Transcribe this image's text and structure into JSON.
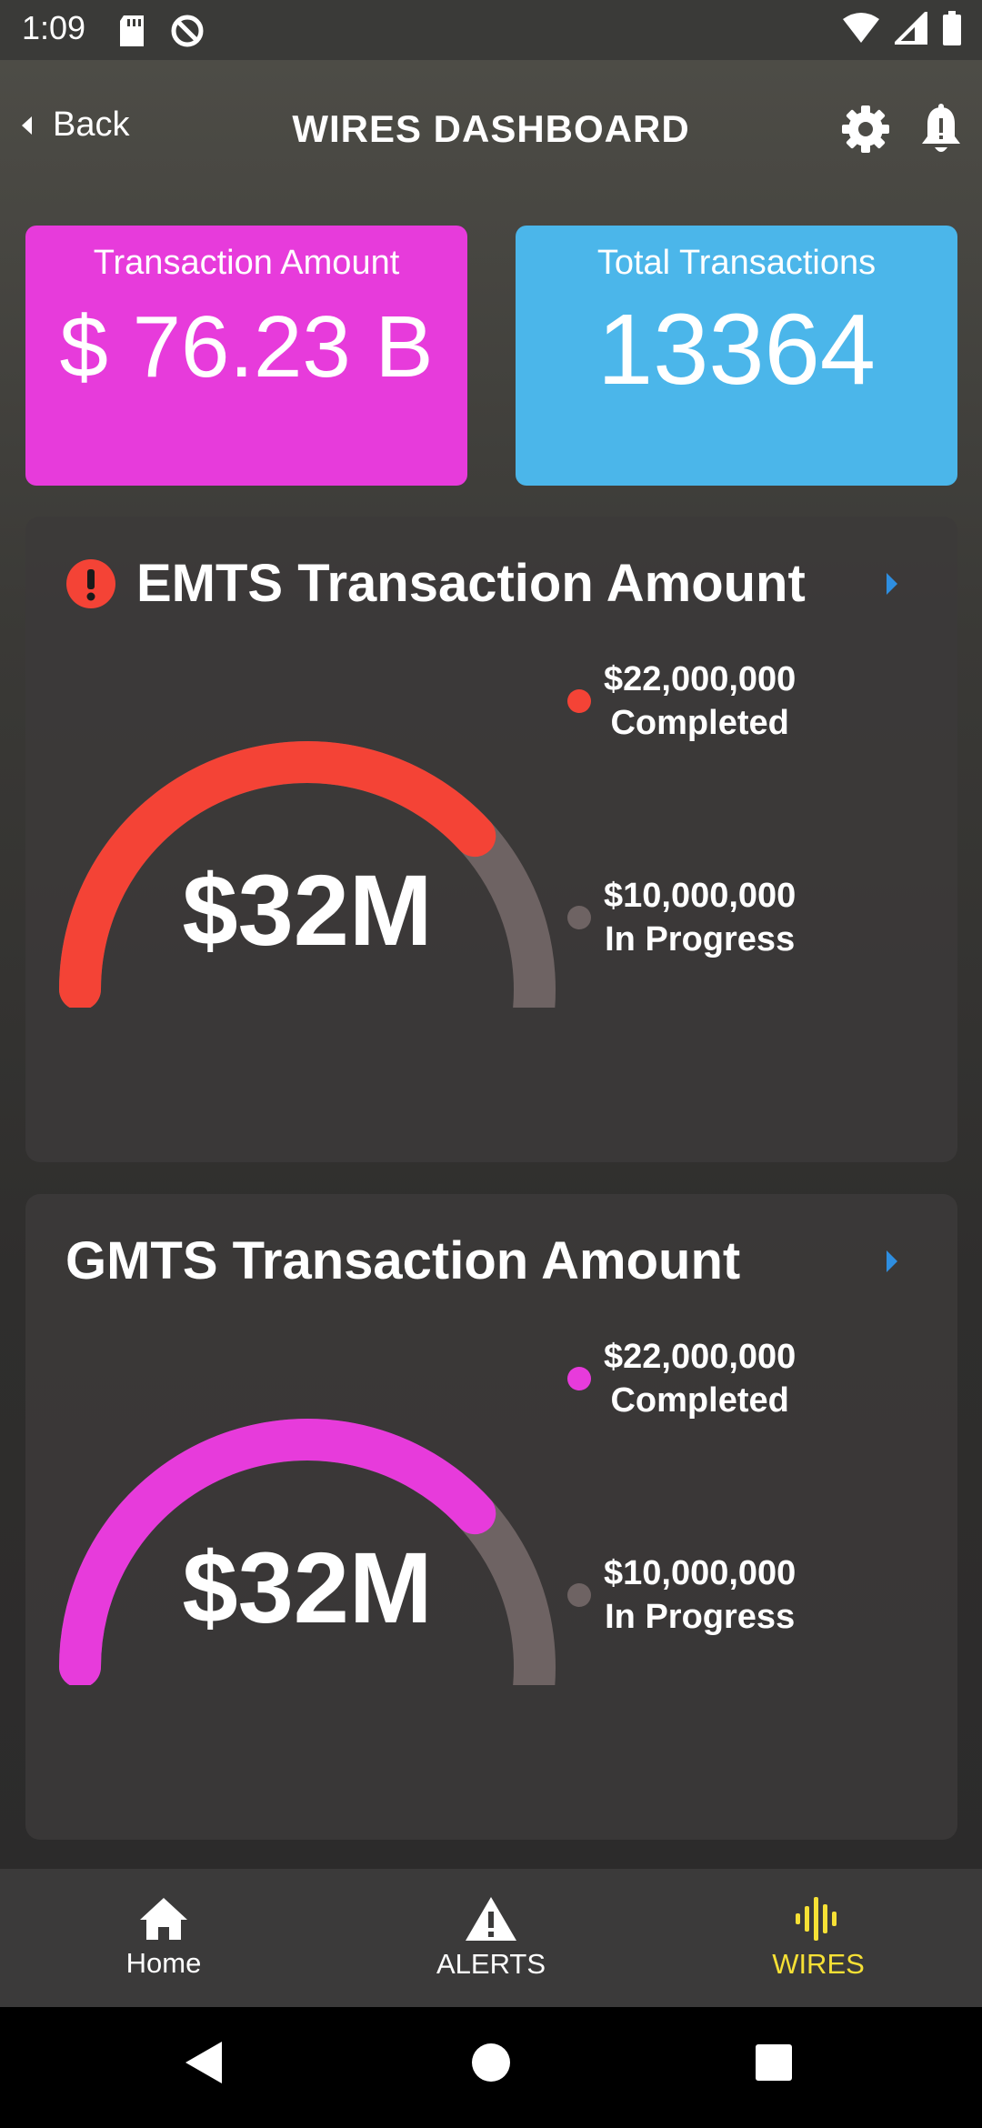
{
  "status_bar": {
    "time": "1:09"
  },
  "app_bar": {
    "back_label": "Back",
    "title": "WIRES DASHBOARD"
  },
  "stats": {
    "transaction_amount": {
      "label": "Transaction Amount",
      "value": "$ 76.23 B",
      "color": "#e73bdb"
    },
    "total_transactions": {
      "label": "Total Transactions",
      "value": "13364",
      "color": "#4bb6ea"
    }
  },
  "panels": {
    "emts": {
      "title": "EMTS Transaction Amount",
      "center_value": "$32M",
      "completed_amount": "$22,000,000",
      "completed_label": "Completed",
      "in_progress_amount": "$10,000,000",
      "in_progress_label": "In Progress",
      "completed_fraction": 0.6875,
      "accent_color": "#f44336",
      "remaining_color": "#6e6363"
    },
    "gmts": {
      "title": "GMTS Transaction Amount",
      "center_value": "$32M",
      "completed_amount": "$22,000,000",
      "completed_label": "Completed",
      "in_progress_amount": "$10,000,000",
      "in_progress_label": "In Progress",
      "completed_fraction": 0.6875,
      "accent_color": "#e73bdb",
      "remaining_color": "#6e6363"
    }
  },
  "bottom_nav": {
    "home": "Home",
    "alerts": "ALERTS",
    "wires": "WIRES",
    "active_color": "#f6e035"
  },
  "icons": {
    "back": "back-arrow-icon",
    "settings": "gear-icon",
    "notifications": "bell-icon",
    "alert": "alert-circle-icon",
    "chevron": "chevron-right-icon"
  }
}
